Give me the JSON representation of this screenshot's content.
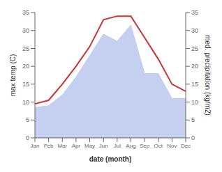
{
  "chart_data": {
    "type": "line",
    "xlabel": "date (month)",
    "ylabel": "max temp (C)",
    "y2label": "med. precipitation (kg/m2)",
    "categories": [
      "Jan",
      "Feb",
      "Mar",
      "Apr",
      "May",
      "Jun",
      "Jul",
      "Aug",
      "Sep",
      "Oct",
      "Nov",
      "Dec"
    ],
    "series": [
      {
        "type": "area",
        "color": "#c5cff0",
        "axis": "y2",
        "values": [
          8.5,
          9.0,
          12.0,
          17.0,
          23.0,
          29.0,
          27.0,
          31.5,
          18.0,
          18.0,
          11.0,
          11.0
        ]
      },
      {
        "type": "line",
        "color": "#cc3333",
        "values": [
          9.5,
          10.5,
          15.0,
          20.0,
          25.5,
          33.0,
          34.0,
          34.0,
          28.0,
          22.0,
          15.0,
          13.0
        ]
      }
    ],
    "ylim": [
      0,
      35
    ],
    "yticks": [
      0,
      5,
      10,
      15,
      20,
      25,
      30,
      35
    ],
    "y2lim": [
      0,
      35
    ],
    "y2ticks": [
      0,
      5,
      10,
      15,
      20,
      25,
      30,
      35
    ],
    "grid": false
  }
}
